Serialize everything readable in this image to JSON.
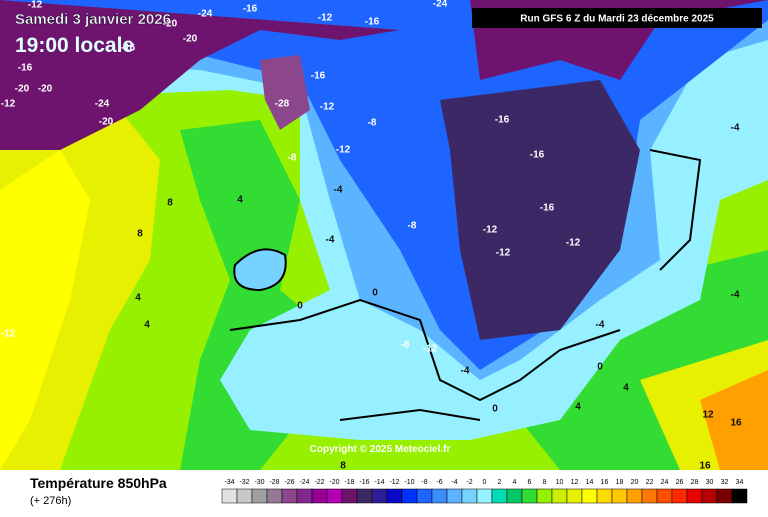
{
  "header": {
    "date": "Samedi 3 janvier 2026",
    "time": "19:00 locale",
    "run": "Run GFS 6 Z du Mardi 23 décembre 2025"
  },
  "copyright": "Copyright © 2025 Meteociel.fr",
  "legend": {
    "title": "Température 850hPa",
    "lead": "(+ 276h)",
    "values": [
      -34,
      -32,
      -30,
      -28,
      -26,
      -24,
      -22,
      -20,
      -18,
      -16,
      -14,
      -12,
      -10,
      -8,
      -6,
      -4,
      -2,
      0,
      2,
      4,
      6,
      8,
      10,
      12,
      14,
      16,
      18,
      20,
      22,
      24,
      26,
      28,
      30,
      32,
      34
    ],
    "colors": [
      "#e1e1e1",
      "#c8c8c8",
      "#a0a0a0",
      "#967896",
      "#8c468c",
      "#82288c",
      "#960096",
      "#b400b4",
      "#6e146e",
      "#3c2864",
      "#2d1e96",
      "#0a0ac8",
      "#0032ff",
      "#1e64ff",
      "#3c8cff",
      "#5ab4ff",
      "#78d2ff",
      "#96f0ff",
      "#00dcb4",
      "#00c864",
      "#32dc32",
      "#96f000",
      "#c8f000",
      "#e6f000",
      "#ffff00",
      "#ffdc00",
      "#ffc800",
      "#ffa000",
      "#ff7800",
      "#ff5000",
      "#ff2800",
      "#e60000",
      "#b40000",
      "#780000",
      "#000000"
    ]
  },
  "map_labels": [
    -12,
    -24,
    -16,
    -12,
    -16,
    -24,
    -20,
    -20,
    -16,
    -20,
    -20,
    -16,
    -24,
    -20,
    -12,
    -28,
    -16,
    -12,
    -8,
    -8,
    -12,
    -16,
    -16,
    -16,
    -12,
    -12,
    -12,
    -8,
    -4,
    -4,
    0,
    4,
    8,
    8,
    4,
    4,
    0,
    -8,
    -12,
    -4,
    0,
    4,
    8,
    12,
    16,
    16,
    -12,
    -4,
    -4,
    -4,
    0,
    4
  ]
}
